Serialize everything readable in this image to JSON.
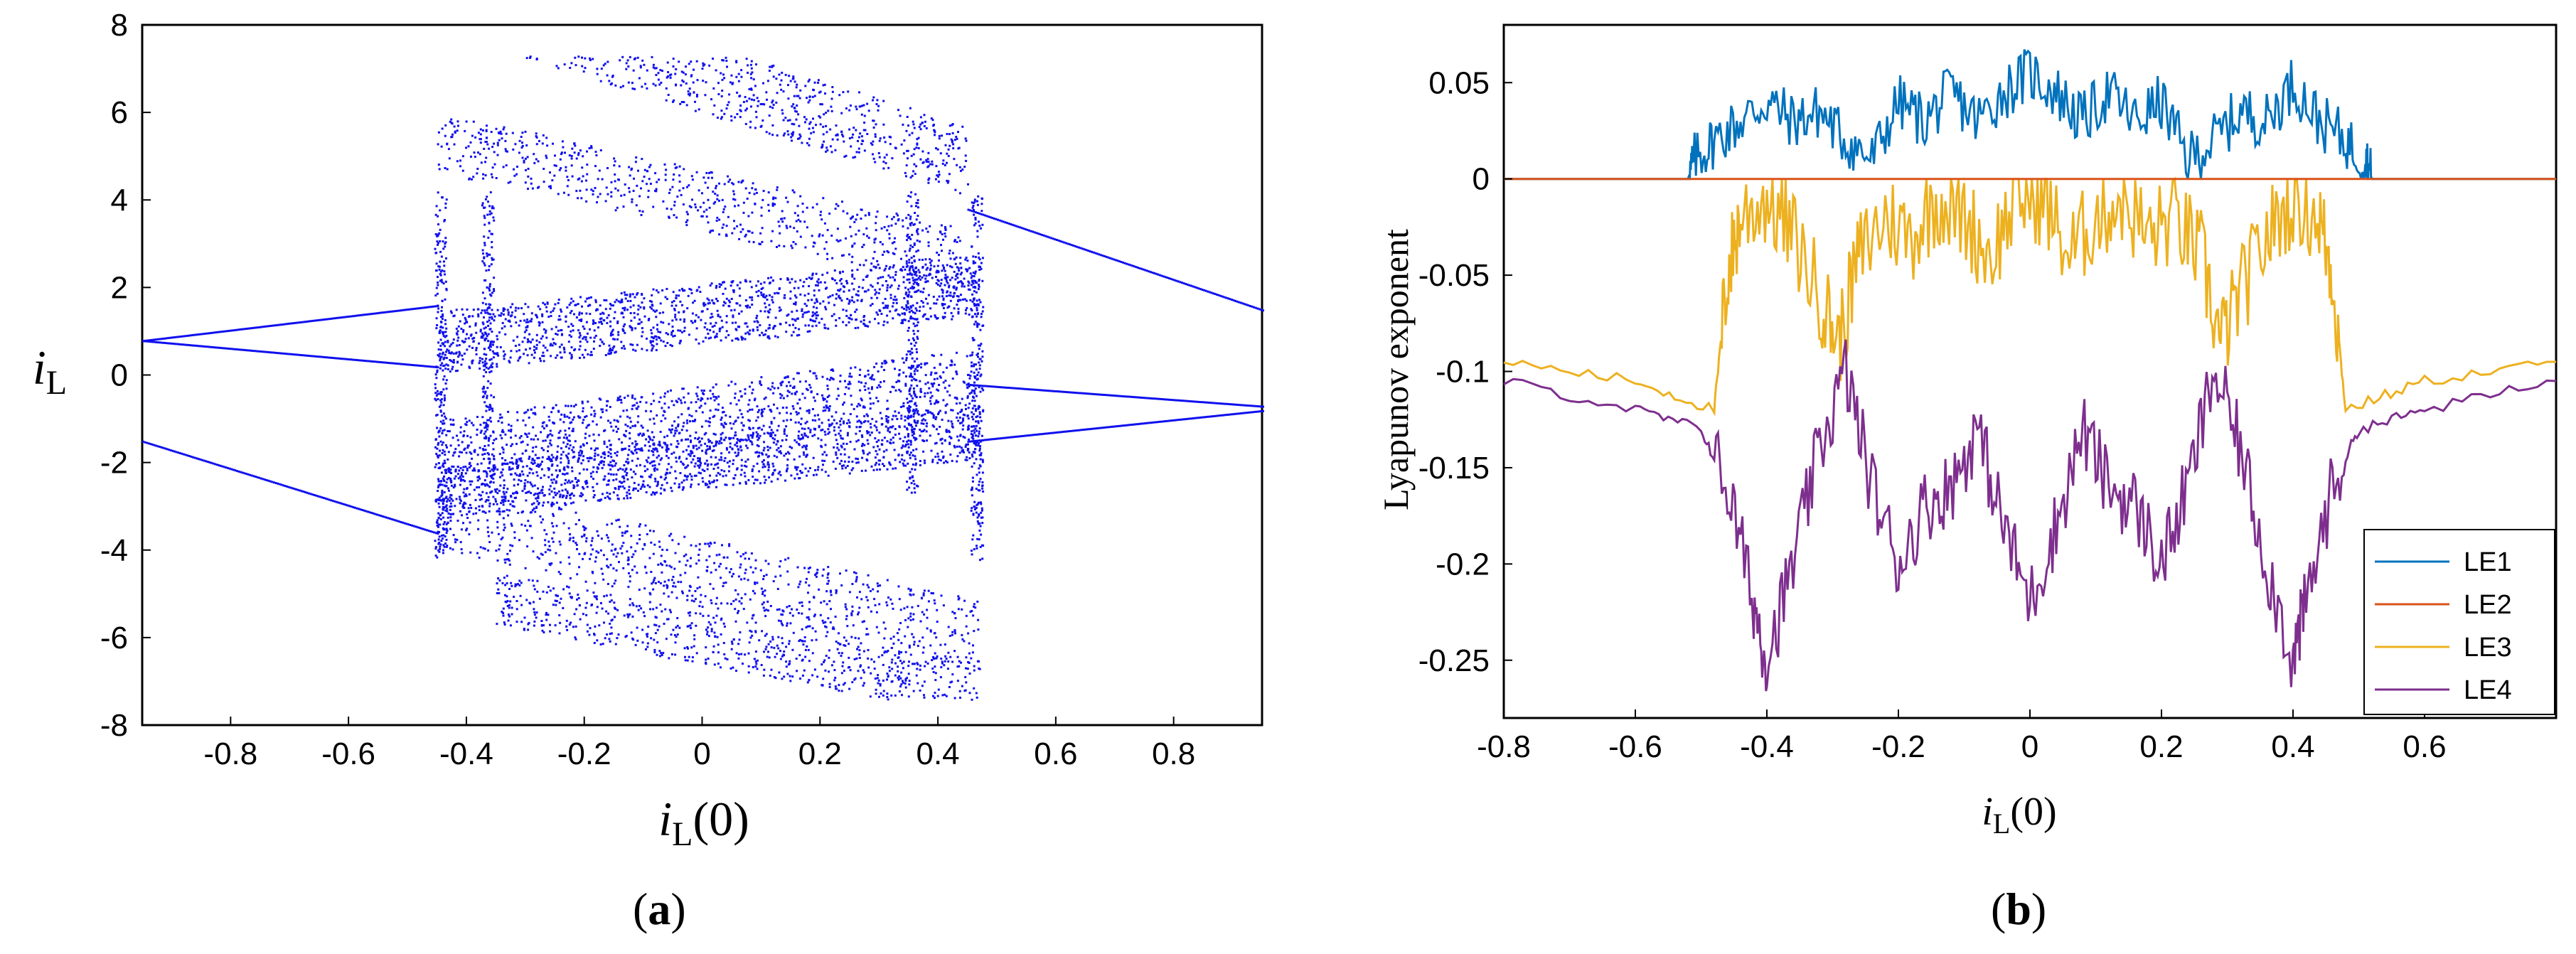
{
  "chart_data": [
    {
      "id": "a",
      "type": "scatter",
      "panel_label": "(a)",
      "panel_letter": "a",
      "xlabel_base": "i",
      "xlabel_sub": "L",
      "xlabel_suffix": "(0)",
      "ylabel_base": "i",
      "ylabel_sub": "L",
      "xlim": [
        -0.95,
        0.95
      ],
      "ylim": [
        -8,
        8
      ],
      "xticks": [
        -0.8,
        -0.6,
        -0.4,
        -0.2,
        0,
        0.2,
        0.4,
        0.6,
        0.8
      ],
      "xtick_labels": [
        "-0.8",
        "-0.6",
        "-0.4",
        "-0.2",
        "0",
        "0.2",
        "0.4",
        "0.6",
        "0.8"
      ],
      "yticks": [
        -8,
        -6,
        -4,
        -2,
        0,
        2,
        4,
        6,
        8
      ],
      "ytick_labels": [
        "-8",
        "-6",
        "-4",
        "-2",
        "0",
        "2",
        "4",
        "6",
        "8"
      ],
      "color": "#1010ee",
      "description_series": [
        {
          "name": "left-branch-upper",
          "x": [
            -0.95,
            -0.45
          ],
          "y": [
            0.8,
            1.6
          ]
        },
        {
          "name": "left-branch-mid",
          "x": [
            -0.95,
            -0.45
          ],
          "y": [
            0.8,
            0.2
          ]
        },
        {
          "name": "left-branch-lower",
          "x": [
            -0.95,
            -0.45
          ],
          "y": [
            -1.5,
            -3.6
          ]
        },
        {
          "name": "right-branch-upper",
          "x": [
            0.45,
            0.95
          ],
          "y": [
            3.8,
            1.5
          ]
        },
        {
          "name": "right-branch-mid",
          "x": [
            0.45,
            0.95
          ],
          "y": [
            -0.2,
            -0.7
          ]
        },
        {
          "name": "right-branch-lower",
          "x": [
            0.45,
            0.95
          ],
          "y": [
            -1.5,
            -0.8
          ]
        }
      ]
    },
    {
      "id": "b",
      "type": "line",
      "panel_label": "(b)",
      "panel_letter": "b",
      "xlabel_base": "i",
      "xlabel_sub": "L",
      "xlabel_suffix": "(0)",
      "ylabel": "Lyapunov exponent",
      "xlim": [
        -0.8,
        0.8
      ],
      "ylim": [
        -0.28,
        0.08
      ],
      "xticks": [
        -0.8,
        -0.6,
        -0.4,
        -0.2,
        0,
        0.2,
        0.4,
        0.6
      ],
      "xtick_labels": [
        "-0.8",
        "-0.6",
        "-0.4",
        "-0.2",
        "0",
        "0.2",
        "0.4",
        "0.6"
      ],
      "yticks": [
        0.05,
        0,
        -0.05,
        -0.1,
        -0.15,
        -0.2,
        -0.25
      ],
      "ytick_labels": [
        "0.05",
        "0",
        "-0.05",
        "-0.1",
        "-0.15",
        "-0.2",
        "-0.25"
      ],
      "legend_position": "bottom-right",
      "series": [
        {
          "name": "LE1",
          "color": "#0072bd",
          "x": [
            -0.8,
            -0.52,
            -0.51,
            -0.48,
            -0.44,
            -0.4,
            -0.36,
            -0.32,
            -0.28,
            -0.24,
            -0.2,
            -0.16,
            -0.12,
            -0.08,
            -0.04,
            0,
            0.04,
            0.08,
            0.12,
            0.16,
            0.2,
            0.24,
            0.28,
            0.32,
            0.36,
            0.4,
            0.44,
            0.48,
            0.51,
            0.52,
            0.8
          ],
          "y": [
            0,
            0,
            0.01,
            0.02,
            0.03,
            0.04,
            0.03,
            0.035,
            0.02,
            0.01,
            0.04,
            0.03,
            0.045,
            0.03,
            0.045,
            0.055,
            0.045,
            0.03,
            0.045,
            0.03,
            0.04,
            0.01,
            0.02,
            0.035,
            0.03,
            0.05,
            0.03,
            0.02,
            0.01,
            0,
            0
          ]
        },
        {
          "name": "LE2",
          "color": "#d95319",
          "x": [
            -0.8,
            -0.8,
            0.8
          ],
          "y": [
            0,
            0,
            0
          ]
        },
        {
          "name": "LE3",
          "color": "#edb120",
          "x": [
            -0.8,
            -0.6,
            -0.48,
            -0.46,
            -0.44,
            -0.4,
            -0.36,
            -0.32,
            -0.29,
            -0.26,
            -0.22,
            -0.18,
            -0.14,
            -0.1,
            -0.06,
            -0.02,
            0.02,
            0.06,
            0.1,
            0.14,
            0.18,
            0.22,
            0.26,
            0.29,
            0.32,
            0.36,
            0.4,
            0.44,
            0.46,
            0.48,
            0.6,
            0.8
          ],
          "y": [
            -0.095,
            -0.105,
            -0.12,
            -0.05,
            -0.02,
            -0.01,
            -0.03,
            -0.06,
            -0.085,
            -0.04,
            -0.02,
            -0.03,
            -0.01,
            -0.02,
            -0.04,
            -0.01,
            -0.01,
            -0.04,
            -0.02,
            -0.01,
            -0.03,
            -0.02,
            -0.04,
            -0.085,
            -0.06,
            -0.03,
            -0.01,
            -0.02,
            -0.05,
            -0.12,
            -0.105,
            -0.095
          ]
        },
        {
          "name": "LE4",
          "color": "#7e2f8e",
          "x": [
            -0.8,
            -0.6,
            -0.5,
            -0.46,
            -0.42,
            -0.4,
            -0.36,
            -0.32,
            -0.28,
            -0.24,
            -0.2,
            -0.16,
            -0.12,
            -0.08,
            -0.04,
            0,
            0.04,
            0.08,
            0.12,
            0.16,
            0.2,
            0.24,
            0.28,
            0.32,
            0.36,
            0.4,
            0.42,
            0.46,
            0.5,
            0.6,
            0.8
          ],
          "y": [
            -0.105,
            -0.12,
            -0.13,
            -0.16,
            -0.22,
            -0.25,
            -0.2,
            -0.14,
            -0.1,
            -0.16,
            -0.2,
            -0.17,
            -0.16,
            -0.13,
            -0.18,
            -0.22,
            -0.18,
            -0.13,
            -0.16,
            -0.17,
            -0.2,
            -0.16,
            -0.1,
            -0.14,
            -0.2,
            -0.25,
            -0.22,
            -0.16,
            -0.13,
            -0.12,
            -0.105
          ]
        }
      ]
    }
  ]
}
